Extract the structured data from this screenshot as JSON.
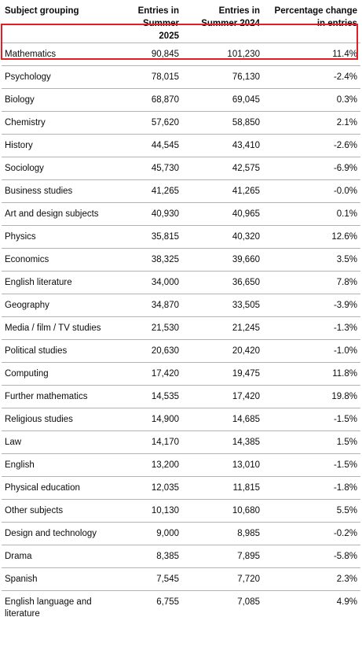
{
  "table": {
    "headers": {
      "subject": "Subject grouping",
      "entries_2025": "Entries in Summer 2025",
      "entries_2024": "Entries in Summer 2024",
      "pct_change": "Percentage change in entries"
    },
    "rows": [
      {
        "subject": "Mathematics",
        "e2025": "90,845",
        "e2024": "101,230",
        "pct": "11.4%"
      },
      {
        "subject": "Psychology",
        "e2025": "78,015",
        "e2024": "76,130",
        "pct": "-2.4%"
      },
      {
        "subject": "Biology",
        "e2025": "68,870",
        "e2024": "69,045",
        "pct": "0.3%"
      },
      {
        "subject": "Chemistry",
        "e2025": "57,620",
        "e2024": "58,850",
        "pct": "2.1%"
      },
      {
        "subject": "History",
        "e2025": "44,545",
        "e2024": "43,410",
        "pct": "-2.6%"
      },
      {
        "subject": "Sociology",
        "e2025": "45,730",
        "e2024": "42,575",
        "pct": "-6.9%"
      },
      {
        "subject": "Business studies",
        "e2025": "41,265",
        "e2024": "41,265",
        "pct": "-0.0%"
      },
      {
        "subject": "Art and design subjects",
        "e2025": "40,930",
        "e2024": "40,965",
        "pct": "0.1%"
      },
      {
        "subject": "Physics",
        "e2025": "35,815",
        "e2024": "40,320",
        "pct": "12.6%"
      },
      {
        "subject": "Economics",
        "e2025": "38,325",
        "e2024": "39,660",
        "pct": "3.5%"
      },
      {
        "subject": "English literature",
        "e2025": "34,000",
        "e2024": "36,650",
        "pct": "7.8%"
      },
      {
        "subject": "Geography",
        "e2025": "34,870",
        "e2024": "33,505",
        "pct": "-3.9%"
      },
      {
        "subject": "Media / film / TV studies",
        "e2025": "21,530",
        "e2024": "21,245",
        "pct": "-1.3%"
      },
      {
        "subject": "Political studies",
        "e2025": "20,630",
        "e2024": "20,420",
        "pct": "-1.0%"
      },
      {
        "subject": "Computing",
        "e2025": "17,420",
        "e2024": "19,475",
        "pct": "11.8%"
      },
      {
        "subject": "Further mathematics",
        "e2025": "14,535",
        "e2024": "17,420",
        "pct": "19.8%"
      },
      {
        "subject": "Religious studies",
        "e2025": "14,900",
        "e2024": "14,685",
        "pct": "-1.5%"
      },
      {
        "subject": "Law",
        "e2025": "14,170",
        "e2024": "14,385",
        "pct": "1.5%"
      },
      {
        "subject": "English",
        "e2025": "13,200",
        "e2024": "13,010",
        "pct": "-1.5%"
      },
      {
        "subject": "Physical education",
        "e2025": "12,035",
        "e2024": "11,815",
        "pct": "-1.8%"
      },
      {
        "subject": "Other subjects",
        "e2025": "10,130",
        "e2024": "10,680",
        "pct": "5.5%"
      },
      {
        "subject": "Design and technology",
        "e2025": "9,000",
        "e2024": "8,985",
        "pct": "-0.2%"
      },
      {
        "subject": "Drama",
        "e2025": "8,385",
        "e2024": "7,895",
        "pct": "-5.8%"
      },
      {
        "subject": "Spanish",
        "e2025": "7,545",
        "e2024": "7,720",
        "pct": "2.3%"
      },
      {
        "subject": "English language and literature",
        "e2025": "6,755",
        "e2024": "7,085",
        "pct": "4.9%"
      }
    ]
  },
  "highlight": {
    "row_subject": "Mathematics",
    "color": "#e31f26"
  }
}
